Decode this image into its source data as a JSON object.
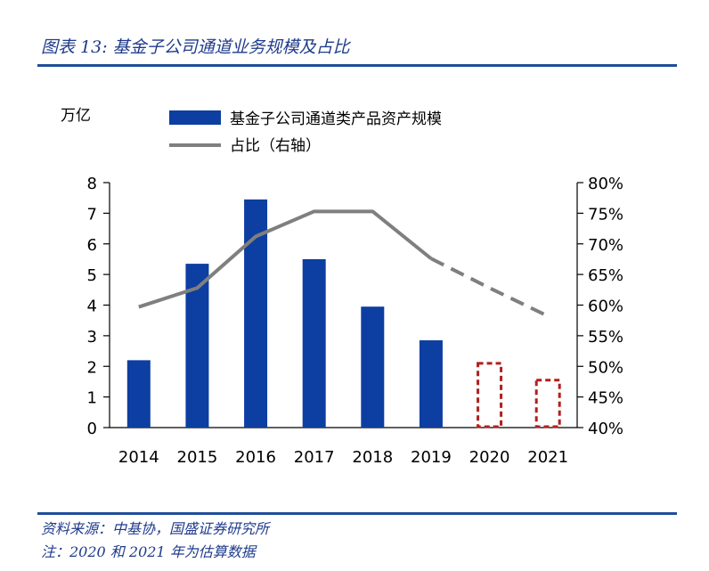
{
  "figure": {
    "title": "图表 13: 基金子公司通道业务规模及占比",
    "source": "资料来源：中基协，国盛证券研究所",
    "note": "注：2020 和 2021 年为估算数据"
  },
  "colors": {
    "bar": "#0d3ea1",
    "estimate_bar": "#b21f1f",
    "line": "#7f7f7f",
    "rule": "#1f4e9b",
    "axis": "#000000"
  },
  "chart_data": {
    "type": "bar",
    "categories": [
      "2014",
      "2015",
      "2016",
      "2017",
      "2018",
      "2019",
      "2020",
      "2021"
    ],
    "y_unit_label": "万亿",
    "ylim": [
      0,
      8
    ],
    "y_ticks": [
      "0",
      "1",
      "2",
      "3",
      "4",
      "5",
      "6",
      "7",
      "8"
    ],
    "y2lim": [
      40,
      80
    ],
    "y2_ticks": [
      "40%",
      "45%",
      "50%",
      "55%",
      "60%",
      "65%",
      "70%",
      "75%",
      "80%"
    ],
    "legend_position": "top",
    "series": [
      {
        "name": "基金子公司通道类产品资产规模",
        "type": "bar",
        "axis": "left",
        "values": [
          2.2,
          5.35,
          7.45,
          5.5,
          3.95,
          2.85,
          2.1,
          1.55
        ],
        "estimated": [
          false,
          false,
          false,
          false,
          false,
          false,
          true,
          true
        ]
      },
      {
        "name": "占比（右轴）",
        "type": "line",
        "axis": "right",
        "values": [
          59.7,
          62.8,
          71.2,
          75.3,
          75.3,
          67.6,
          62.8,
          58.2
        ],
        "estimated": [
          false,
          false,
          false,
          false,
          false,
          false,
          true,
          true
        ]
      }
    ]
  }
}
